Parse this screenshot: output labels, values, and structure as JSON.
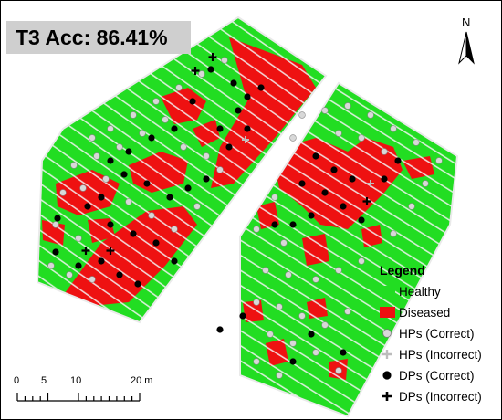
{
  "title": "T3 Acc: 86.41%",
  "north_label": "N",
  "legend": {
    "title": "Legend",
    "items": [
      {
        "label": "Healthy",
        "symbol": "square",
        "color": "#22dd22"
      },
      {
        "label": "Diseased",
        "symbol": "square",
        "color": "#ee1111"
      },
      {
        "label": "HPs (Correct)",
        "symbol": "circle-light",
        "color": "#d8d8d8"
      },
      {
        "label": "HPs (Incorrect)",
        "symbol": "cross-light",
        "color": "#d8d8d8"
      },
      {
        "label": "DPs (Correct)",
        "symbol": "circle-dark",
        "color": "#000000"
      },
      {
        "label": "DPs (Incorrect)",
        "symbol": "cross-dark",
        "color": "#000000"
      }
    ]
  },
  "scale": {
    "ticks": [
      "0",
      "5",
      "10",
      "20 m"
    ]
  },
  "colors": {
    "healthy": "#22dd22",
    "diseased": "#ee1111",
    "hp_marker": "#d8d8d8",
    "dp_marker": "#000000"
  }
}
